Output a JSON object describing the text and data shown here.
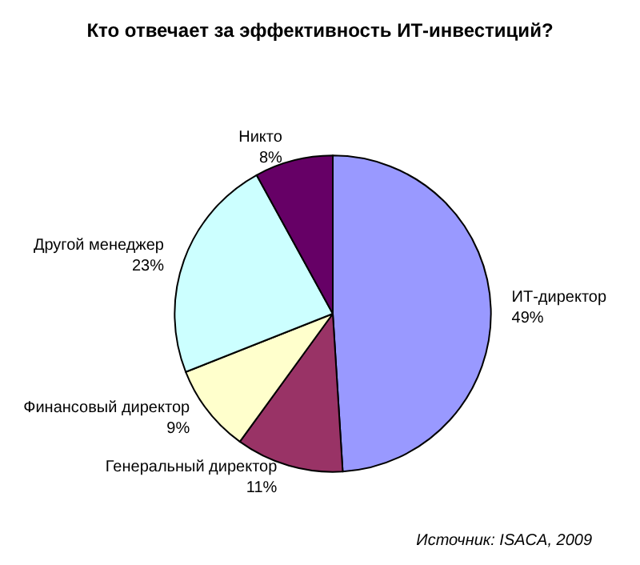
{
  "chart_data": {
    "type": "pie",
    "title": "Кто отвечает за эффективность ИТ-инвестиций?",
    "categories": [
      "ИТ-директор",
      "Генеральный директор",
      "Финансовый директор",
      "Другой менеджер",
      "Никто"
    ],
    "values": [
      49,
      11,
      9,
      23,
      8
    ],
    "colors": [
      "#9999ff",
      "#993366",
      "#ffffcc",
      "#ccffff",
      "#660066"
    ],
    "value_labels": [
      "49%",
      "11%",
      "9%",
      "23%",
      "8%"
    ],
    "legend": false,
    "annotations": [
      "Источник: ISACA, 2009"
    ]
  }
}
